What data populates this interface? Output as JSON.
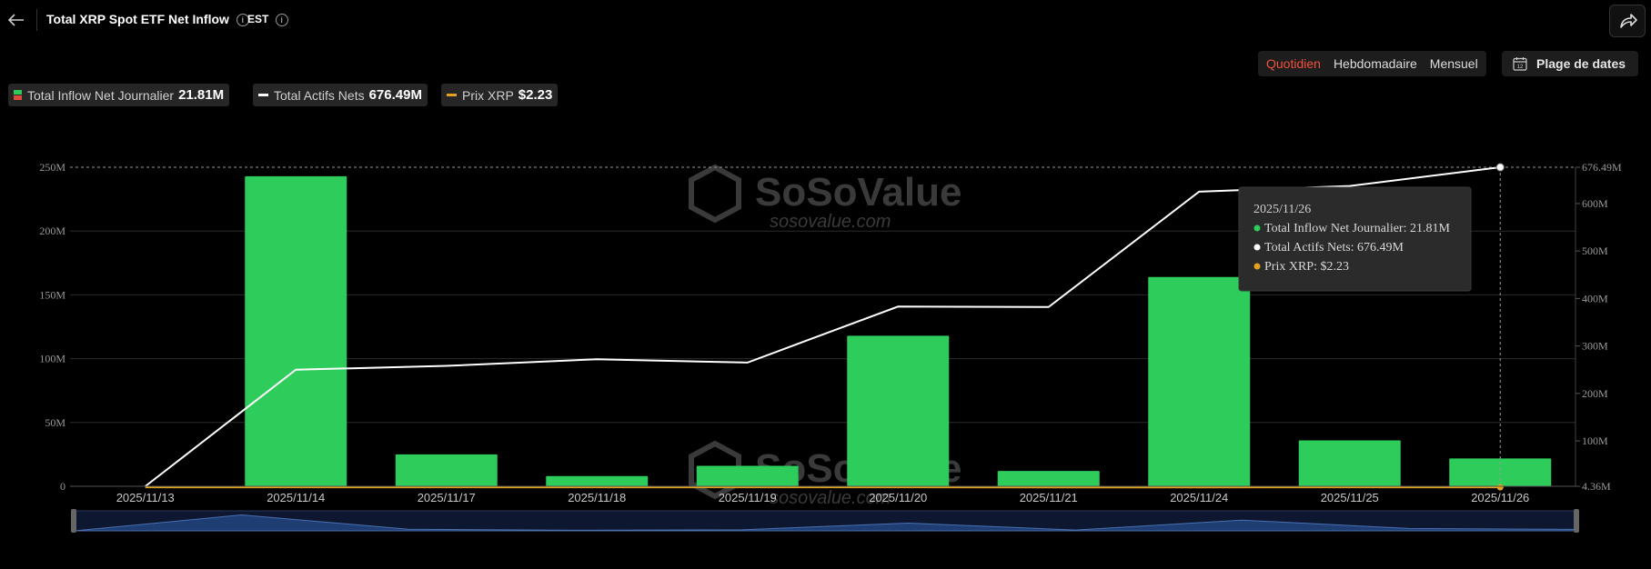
{
  "header": {
    "title": "Total XRP Spot ETF Net Inflow",
    "timezone": "EST",
    "info_glyph": "i"
  },
  "controls": {
    "periods": [
      "Quotidien",
      "Hebdomadaire",
      "Mensuel"
    ],
    "active_period": "Quotidien",
    "date_range_label": "Plage de dates",
    "date_range_icon_text": "12"
  },
  "legend": [
    {
      "label": "Total Inflow Net Journalier",
      "value": "21.81M",
      "icon": "bar-swatch"
    },
    {
      "label": "Total Actifs Nets",
      "value": "676.49M",
      "icon": "line-swatch"
    },
    {
      "label": "Prix XRP",
      "value": "$2.23",
      "icon": "line-swatch"
    }
  ],
  "colors": {
    "bar": "#2ecc5a",
    "line": "#ffffff",
    "price": "#e2a21f",
    "accent": "#f2503a",
    "navigator": "#1d3d73"
  },
  "watermark": {
    "brand": "SoSoValue",
    "url": "sosovalue.com"
  },
  "tooltip": {
    "date": "2025/11/26",
    "rows": [
      {
        "text": "Total Inflow Net Journalier: 21.81M",
        "color": "#2ecc5a"
      },
      {
        "text": "Total Actifs Nets: 676.49M",
        "color": "#ffffff"
      },
      {
        "text": "Prix XRP: $2.23",
        "color": "#e2a21f"
      }
    ]
  },
  "chart_data": {
    "type": "bar",
    "categories": [
      "2025/11/13",
      "2025/11/14",
      "2025/11/17",
      "2025/11/18",
      "2025/11/19",
      "2025/11/20",
      "2025/11/21",
      "2025/11/24",
      "2025/11/25",
      "2025/11/26"
    ],
    "series": [
      {
        "name": "Total Inflow Net Journalier",
        "type": "bar",
        "axis": "left",
        "values": [
          0,
          243,
          25,
          8,
          16,
          118,
          12,
          164,
          36,
          21.81
        ]
      },
      {
        "name": "Total Actifs Nets",
        "type": "line",
        "axis": "right",
        "values": [
          4.36,
          250,
          258,
          272,
          265,
          383,
          382,
          625,
          637,
          676.49
        ]
      },
      {
        "name": "Prix XRP",
        "type": "line",
        "axis": "right",
        "values": [
          2.2,
          2.27,
          2.15,
          2.25,
          2.1,
          2.14,
          1.98,
          2.05,
          2.2,
          2.23
        ]
      }
    ],
    "y_left": {
      "ticks": [
        0,
        50,
        100,
        150,
        200,
        250
      ],
      "tick_labels": [
        "0",
        "50M",
        "100M",
        "150M",
        "200M",
        "250M"
      ],
      "range": [
        0,
        250
      ]
    },
    "y_right": {
      "tick_values": [
        4.36,
        100,
        200,
        300,
        400,
        500,
        600,
        676.49
      ],
      "tick_labels": [
        "4.36M",
        "100M",
        "200M",
        "300M",
        "400M",
        "500M",
        "600M",
        "676.49M"
      ],
      "range": [
        4.36,
        676.49
      ]
    },
    "grid": true,
    "legend": "top-left",
    "highlight_index": 9
  }
}
